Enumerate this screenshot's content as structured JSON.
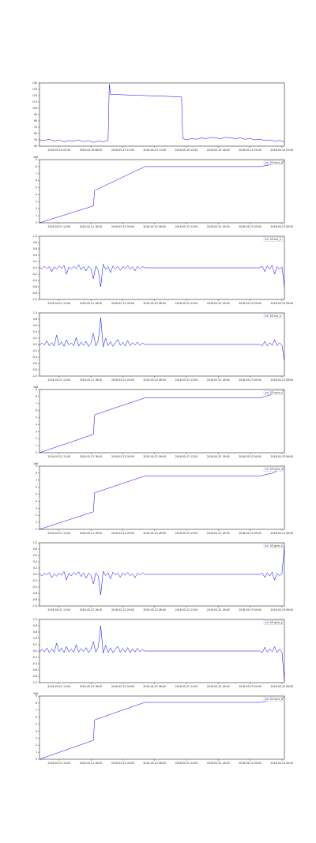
{
  "chart_data": [
    {
      "type": "line",
      "xlim": [
        0,
        100
      ],
      "ylim": [
        40,
        140
      ],
      "yticks": [
        40,
        50,
        60,
        70,
        80,
        90,
        100,
        110,
        120,
        130,
        140
      ],
      "xticks": [
        {
          "value": 8,
          "label": "2016-05-19 05:30"
        },
        {
          "value": 21,
          "label": "2016-05-19 08:00"
        },
        {
          "value": 34,
          "label": "2016-05-19 10:30"
        },
        {
          "value": 47,
          "label": "2016-05-19 13:00"
        },
        {
          "value": 60,
          "label": "2016-05-19 15:30"
        },
        {
          "value": 73,
          "label": "2016-05-19 18:00"
        },
        {
          "value": 86,
          "label": "2016-05-19 20:30"
        },
        {
          "value": 99,
          "label": "2016-05-19 23:00"
        }
      ],
      "x": [
        0,
        2,
        4,
        6,
        8,
        10,
        12,
        14,
        16,
        18,
        20,
        22,
        24,
        26,
        28,
        28.5,
        29,
        58,
        58.5,
        60,
        62,
        64,
        66,
        68,
        70,
        72,
        74,
        76,
        78,
        80,
        82,
        84,
        86,
        88,
        90,
        92,
        94,
        96,
        98,
        100
      ],
      "series": [
        {
          "color": "#0000ff",
          "values": [
            50,
            49,
            51,
            48,
            50,
            47,
            49,
            48,
            50,
            47,
            49,
            46,
            48,
            47,
            49,
            138,
            122,
            118,
            52,
            50,
            52,
            51,
            53,
            52,
            54,
            53,
            52,
            54,
            53,
            52,
            53,
            51,
            52,
            50,
            51,
            49,
            50,
            48,
            49,
            47
          ]
        }
      ]
    },
    {
      "type": "line",
      "offset_text": "1e6",
      "legend": "upper right",
      "xlim": [
        0,
        100
      ],
      "ylim": [
        0,
        9
      ],
      "yticks": [
        0,
        1,
        2,
        3,
        4,
        5,
        6,
        7,
        8,
        9
      ],
      "xticks": [
        {
          "value": 8,
          "label": "2016-05-21 12:00"
        },
        {
          "value": 21,
          "label": "2016-05-21 18:00"
        },
        {
          "value": 34,
          "label": "2016-05-22 00:00"
        },
        {
          "value": 47,
          "label": "2016-05-22 06:00"
        },
        {
          "value": 60,
          "label": "2016-05-22 12:00"
        },
        {
          "value": 73,
          "label": "2016-05-22 18:00"
        },
        {
          "value": 86,
          "label": "2016-05-23 00:00"
        },
        {
          "value": 99,
          "label": "2016-05-23 06:00"
        }
      ],
      "x": [
        0,
        22,
        22.5,
        43,
        90,
        95,
        100
      ],
      "series": [
        {
          "name": "1D sync_d",
          "color": "#0000ff",
          "values": [
            0,
            2.4,
            4.6,
            8.0,
            8.0,
            8.3,
            8.8
          ]
        }
      ]
    },
    {
      "type": "line",
      "legend": "upper right",
      "xlim": [
        0,
        100
      ],
      "ylim": [
        -1,
        1
      ],
      "yticks": [
        {
          "value": -1,
          "label": "-1.0"
        },
        -0.8,
        -0.6,
        -0.4,
        -0.2,
        {
          "value": 0,
          "label": "0.0"
        },
        0.2,
        0.4,
        0.6,
        0.8,
        {
          "value": 1,
          "label": "1.0"
        }
      ],
      "xticks": [
        {
          "value": 8,
          "label": "2016-05-21 12:00"
        },
        {
          "value": 21,
          "label": "2016-05-21 18:00"
        },
        {
          "value": 34,
          "label": "2016-05-22 00:00"
        },
        {
          "value": 47,
          "label": "2016-05-22 06:00"
        },
        {
          "value": 60,
          "label": "2016-05-22 12:00"
        },
        {
          "value": 73,
          "label": "2016-05-22 18:00"
        },
        {
          "value": 86,
          "label": "2016-05-23 00:00"
        },
        {
          "value": 99,
          "label": "2016-05-23 06:00"
        }
      ],
      "x": [
        0,
        1,
        2,
        3,
        4,
        5,
        6,
        7,
        8,
        9,
        10,
        11,
        12,
        13,
        14,
        15,
        16,
        17,
        18,
        19,
        20,
        21,
        22,
        23,
        24,
        25,
        26,
        27,
        28,
        29,
        30,
        31,
        32,
        33,
        34,
        35,
        36,
        37,
        38,
        39,
        40,
        41,
        42,
        43,
        90,
        91,
        92,
        93,
        94,
        95,
        96,
        97,
        98,
        99,
        100
      ],
      "series": [
        {
          "name": "1D acc_x",
          "color": "#0000ff",
          "values": [
            0.02,
            -0.04,
            0.05,
            -0.03,
            0.04,
            -0.12,
            0.03,
            -0.05,
            0.06,
            -0.02,
            0.08,
            -0.2,
            0.03,
            -0.04,
            0.05,
            -0.03,
            0.1,
            -0.06,
            0.04,
            -0.1,
            0.05,
            -0.02,
            -0.35,
            0.06,
            -0.08,
            -0.6,
            0.12,
            -0.05,
            0.04,
            -0.15,
            0.06,
            -0.03,
            0.05,
            -0.08,
            0.04,
            -0.02,
            0.07,
            -0.05,
            0.03,
            -0.1,
            0.05,
            -0.03,
            0.04,
            0,
            0,
            0.05,
            -0.12,
            0.06,
            -0.04,
            0.08,
            -0.2,
            0.04,
            -0.05,
            0.03,
            -0.6
          ]
        }
      ]
    },
    {
      "type": "line",
      "legend": "upper right",
      "xlim": [
        0,
        100
      ],
      "ylim": [
        -1,
        1
      ],
      "yticks": [
        {
          "value": -1,
          "label": "-1.0"
        },
        -0.8,
        -0.6,
        -0.4,
        -0.2,
        {
          "value": 0,
          "label": "0.0"
        },
        0.2,
        0.4,
        0.6,
        0.8,
        {
          "value": 1,
          "label": "1.0"
        }
      ],
      "xticks": [
        {
          "value": 8,
          "label": "2016-05-21 12:00"
        },
        {
          "value": 21,
          "label": "2016-05-21 18:00"
        },
        {
          "value": 34,
          "label": "2016-05-22 00:00"
        },
        {
          "value": 47,
          "label": "2016-05-22 06:00"
        },
        {
          "value": 60,
          "label": "2016-05-22 12:00"
        },
        {
          "value": 73,
          "label": "2016-05-22 18:00"
        },
        {
          "value": 86,
          "label": "2016-05-23 00:00"
        },
        {
          "value": 99,
          "label": "2016-05-23 06:00"
        }
      ],
      "x": [
        0,
        1,
        2,
        3,
        4,
        5,
        6,
        7,
        8,
        9,
        10,
        11,
        12,
        13,
        14,
        15,
        16,
        17,
        18,
        19,
        20,
        21,
        22,
        23,
        24,
        25,
        26,
        27,
        28,
        29,
        30,
        31,
        32,
        33,
        34,
        35,
        36,
        37,
        38,
        39,
        40,
        41,
        42,
        43,
        90,
        91,
        92,
        93,
        94,
        95,
        96,
        97,
        98,
        99,
        100
      ],
      "series": [
        {
          "name": "1D acc_y",
          "color": "#0000ff",
          "values": [
            -0.03,
            0.05,
            -0.02,
            0.12,
            -0.04,
            0.06,
            -0.05,
            0.3,
            -0.03,
            0.08,
            -0.06,
            0.15,
            -0.02,
            0.05,
            -0.04,
            0.22,
            -0.05,
            0.07,
            -0.03,
            0.1,
            -0.06,
            0.04,
            0.35,
            -0.05,
            0.12,
            0.85,
            -0.08,
            0.2,
            -0.04,
            0.09,
            -0.06,
            0.05,
            0.16,
            -0.03,
            0.07,
            -0.05,
            0.12,
            -0.04,
            0.06,
            -0.02,
            0.08,
            -0.03,
            0.05,
            0,
            0,
            -0.04,
            0.1,
            -0.05,
            0.06,
            -0.03,
            0.15,
            -0.04,
            0.05,
            -0.02,
            -0.5
          ]
        }
      ]
    },
    {
      "type": "line",
      "offset_text": "1e6",
      "legend": "upper right",
      "xlim": [
        0,
        100
      ],
      "ylim": [
        0,
        9
      ],
      "yticks": [
        0,
        1,
        2,
        3,
        4,
        5,
        6,
        7,
        8,
        9
      ],
      "xticks": [
        {
          "value": 8,
          "label": "2016-05-21 12:00"
        },
        {
          "value": 21,
          "label": "2016-05-21 18:00"
        },
        {
          "value": 34,
          "label": "2016-05-22 00:00"
        },
        {
          "value": 47,
          "label": "2016-05-22 06:00"
        },
        {
          "value": 60,
          "label": "2016-05-22 12:00"
        },
        {
          "value": 73,
          "label": "2016-05-22 18:00"
        },
        {
          "value": 86,
          "label": "2016-05-23 00:00"
        },
        {
          "value": 99,
          "label": "2016-05-23 06:00"
        }
      ],
      "x": [
        0,
        22,
        22.5,
        43,
        90,
        95,
        100
      ],
      "series": [
        {
          "name": "1D sync_z",
          "color": "#0000ff",
          "values": [
            0,
            2.6,
            5.4,
            7.8,
            7.8,
            8.3,
            8.9
          ]
        }
      ]
    },
    {
      "type": "line",
      "offset_text": "1e6",
      "legend": "upper right",
      "xlim": [
        0,
        100
      ],
      "ylim": [
        0,
        9
      ],
      "yticks": [
        0,
        1,
        2,
        3,
        4,
        5,
        6,
        7,
        8,
        9
      ],
      "xticks": [
        {
          "value": 8,
          "label": "2016-05-21 12:00"
        },
        {
          "value": 21,
          "label": "2016-05-21 18:00"
        },
        {
          "value": 34,
          "label": "2016-05-22 00:00"
        },
        {
          "value": 47,
          "label": "2016-05-22 06:00"
        },
        {
          "value": 60,
          "label": "2016-05-22 12:00"
        },
        {
          "value": 73,
          "label": "2016-05-22 18:00"
        },
        {
          "value": 86,
          "label": "2016-05-23 00:00"
        },
        {
          "value": 99,
          "label": "2016-05-23 06:00"
        }
      ],
      "x": [
        0,
        22,
        22.5,
        43,
        90,
        95,
        100
      ],
      "series": [
        {
          "name": "1D sync_a",
          "color": "#0000ff",
          "values": [
            0,
            2.5,
            5.2,
            7.6,
            7.6,
            8.0,
            8.7
          ]
        }
      ]
    },
    {
      "type": "line",
      "legend": "upper right",
      "xlim": [
        0,
        100
      ],
      "ylim": [
        -1,
        1
      ],
      "yticks": [
        {
          "value": -1,
          "label": "-1.0"
        },
        -0.8,
        -0.6,
        -0.4,
        -0.2,
        {
          "value": 0,
          "label": "0.0"
        },
        0.2,
        0.4,
        0.6,
        0.8,
        {
          "value": 1,
          "label": "1.0"
        }
      ],
      "xticks": [
        {
          "value": 8,
          "label": "2016-05-21 12:00"
        },
        {
          "value": 21,
          "label": "2016-05-21 18:00"
        },
        {
          "value": 34,
          "label": "2016-05-22 00:00"
        },
        {
          "value": 47,
          "label": "2016-05-22 06:00"
        },
        {
          "value": 60,
          "label": "2016-05-22 12:00"
        },
        {
          "value": 73,
          "label": "2016-05-22 18:00"
        },
        {
          "value": 86,
          "label": "2016-05-23 00:00"
        },
        {
          "value": 99,
          "label": "2016-05-23 06:00"
        }
      ],
      "x": [
        0,
        1,
        2,
        3,
        4,
        5,
        6,
        7,
        8,
        9,
        10,
        11,
        12,
        13,
        14,
        15,
        16,
        17,
        18,
        19,
        20,
        21,
        22,
        23,
        24,
        25,
        26,
        27,
        28,
        29,
        30,
        31,
        32,
        33,
        34,
        35,
        36,
        37,
        38,
        39,
        40,
        41,
        42,
        43,
        90,
        91,
        92,
        93,
        94,
        95,
        96,
        97,
        98,
        99,
        100
      ],
      "series": [
        {
          "name": "1D gyro_x",
          "color": "#0000ff",
          "values": [
            0.03,
            -0.05,
            0.04,
            -0.02,
            0.06,
            -0.1,
            0.02,
            -0.06,
            0.05,
            -0.03,
            0.09,
            -0.18,
            0.04,
            -0.05,
            0.06,
            -0.02,
            0.08,
            -0.07,
            0.05,
            -0.12,
            0.04,
            -0.03,
            -0.3,
            0.05,
            -0.06,
            -0.65,
            0.1,
            -0.04,
            0.05,
            -0.14,
            0.07,
            -0.02,
            0.04,
            -0.09,
            0.05,
            -0.03,
            0.06,
            -0.04,
            0.02,
            -0.11,
            0.04,
            -0.02,
            0.05,
            0,
            0,
            0.04,
            -0.1,
            0.05,
            -0.05,
            0.07,
            -0.18,
            0.03,
            -0.04,
            0.02,
            0.9
          ]
        }
      ]
    },
    {
      "type": "line",
      "legend": "upper right",
      "xlim": [
        0,
        100
      ],
      "ylim": [
        -1,
        1
      ],
      "yticks": [
        {
          "value": -1,
          "label": "-1.0"
        },
        -0.8,
        -0.6,
        -0.4,
        -0.2,
        {
          "value": 0,
          "label": "0.0"
        },
        0.2,
        0.4,
        0.6,
        0.8,
        {
          "value": 1,
          "label": "1.0"
        }
      ],
      "xticks": [
        {
          "value": 8,
          "label": "2016-05-21 12:00"
        },
        {
          "value": 21,
          "label": "2016-05-21 18:00"
        },
        {
          "value": 34,
          "label": "2016-05-22 00:00"
        },
        {
          "value": 47,
          "label": "2016-05-22 06:00"
        },
        {
          "value": 60,
          "label": "2016-05-22 12:00"
        },
        {
          "value": 73,
          "label": "2016-05-22 18:00"
        },
        {
          "value": 86,
          "label": "2016-05-23 00:00"
        },
        {
          "value": 99,
          "label": "2016-05-23 06:00"
        }
      ],
      "x": [
        0,
        1,
        2,
        3,
        4,
        5,
        6,
        7,
        8,
        9,
        10,
        11,
        12,
        13,
        14,
        15,
        16,
        17,
        18,
        19,
        20,
        21,
        22,
        23,
        24,
        25,
        26,
        27,
        28,
        29,
        30,
        31,
        32,
        33,
        34,
        35,
        36,
        37,
        38,
        39,
        40,
        41,
        42,
        43,
        90,
        91,
        92,
        93,
        94,
        95,
        96,
        97,
        98,
        99,
        100
      ],
      "series": [
        {
          "name": "1D gyro_y",
          "color": "#0000ff",
          "values": [
            -0.04,
            0.06,
            -0.03,
            0.1,
            -0.05,
            0.07,
            -0.04,
            0.25,
            -0.02,
            0.09,
            -0.05,
            0.14,
            -0.03,
            0.06,
            -0.05,
            0.2,
            -0.04,
            0.08,
            -0.02,
            0.11,
            -0.05,
            0.05,
            0.3,
            -0.04,
            0.13,
            0.8,
            -0.07,
            0.18,
            -0.05,
            0.1,
            -0.05,
            0.06,
            0.15,
            -0.04,
            0.08,
            -0.04,
            0.11,
            -0.05,
            0.07,
            -0.03,
            0.09,
            -0.02,
            0.04,
            0,
            0,
            -0.05,
            0.12,
            -0.04,
            0.07,
            -0.02,
            0.14,
            -0.05,
            0.06,
            -0.03,
            -0.95
          ]
        }
      ]
    },
    {
      "type": "line",
      "offset_text": "1e6",
      "legend": "upper right",
      "xlim": [
        0,
        100
      ],
      "ylim": [
        0,
        9
      ],
      "yticks": [
        0,
        1,
        2,
        3,
        4,
        5,
        6,
        7,
        8,
        9
      ],
      "xticks": [
        {
          "value": 8,
          "label": "2016-05-21 12:00"
        },
        {
          "value": 21,
          "label": "2016-05-21 18:00"
        },
        {
          "value": 34,
          "label": "2016-05-22 00:00"
        },
        {
          "value": 47,
          "label": "2016-05-22 06:00"
        },
        {
          "value": 60,
          "label": "2016-05-22 12:00"
        },
        {
          "value": 73,
          "label": "2016-05-22 18:00"
        },
        {
          "value": 86,
          "label": "2016-05-23 00:00"
        },
        {
          "value": 99,
          "label": "2016-05-23 06:00"
        }
      ],
      "x": [
        0,
        22,
        22.5,
        43,
        90,
        95,
        100
      ],
      "series": [
        {
          "name": "1D sync_b",
          "color": "#0000ff",
          "values": [
            0,
            2.7,
            5.6,
            8.1,
            8.1,
            8.4,
            8.8
          ]
        }
      ]
    }
  ]
}
